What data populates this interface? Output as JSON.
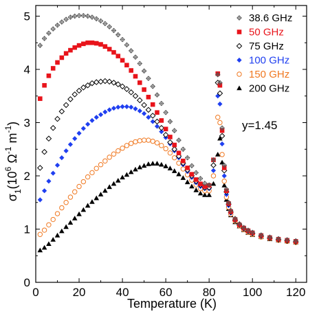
{
  "chart_data": {
    "type": "scatter",
    "xlabel": "Temperature (K)",
    "ylabel": {
      "base": "σ",
      "sub": "1",
      "paren_open": "(10",
      "exp": "6",
      "unit_mid": " Ω",
      "exp2": "-1",
      "unit_end": " m",
      "exp3": "-1",
      "paren_close": ")"
    },
    "xlim": [
      0,
      125
    ],
    "ylim": [
      0,
      5.2
    ],
    "xticks": [
      0,
      20,
      40,
      60,
      80,
      100,
      120
    ],
    "yticks": [
      0,
      1,
      2,
      3,
      4,
      5
    ],
    "annotation": "y=1.45",
    "legend_position": "top-right",
    "series": [
      {
        "name": "38.6 GHz",
        "color": "#555555",
        "marker": "diamond-plus",
        "x": [
          2,
          4,
          6,
          8,
          10,
          12,
          14,
          16,
          18,
          20,
          22,
          24,
          26,
          28,
          30,
          32,
          34,
          36,
          38,
          40,
          42,
          44,
          46,
          48,
          50,
          52,
          54,
          56,
          58,
          60,
          62,
          64,
          66,
          68,
          70,
          72,
          74,
          76,
          78,
          80,
          82,
          84,
          85,
          86,
          87,
          88,
          89,
          90,
          92,
          94,
          96,
          98,
          100,
          104,
          108,
          112,
          116,
          120
        ],
        "y": [
          4.45,
          4.58,
          4.68,
          4.76,
          4.83,
          4.89,
          4.94,
          4.98,
          5.0,
          5.01,
          5.01,
          5.0,
          4.98,
          4.95,
          4.91,
          4.86,
          4.8,
          4.73,
          4.65,
          4.56,
          4.46,
          4.35,
          4.23,
          4.11,
          3.97,
          3.83,
          3.68,
          3.52,
          3.36,
          3.19,
          3.02,
          2.85,
          2.67,
          2.5,
          2.34,
          2.19,
          2.06,
          1.95,
          1.86,
          1.83,
          2.3,
          3.9,
          3.75,
          2.9,
          2.2,
          1.75,
          1.5,
          1.35,
          1.2,
          1.1,
          1.03,
          0.98,
          0.94,
          0.89,
          0.85,
          0.82,
          0.8,
          0.78
        ]
      },
      {
        "name": "50 GHz",
        "color": "#e8141b",
        "marker": "square",
        "x": [
          2,
          4,
          6,
          8,
          10,
          12,
          14,
          16,
          18,
          20,
          22,
          24,
          26,
          28,
          30,
          32,
          34,
          36,
          38,
          40,
          42,
          44,
          46,
          48,
          50,
          52,
          54,
          56,
          58,
          60,
          62,
          64,
          66,
          68,
          70,
          72,
          74,
          76,
          78,
          80,
          82,
          84,
          85,
          86,
          87,
          88,
          89,
          90,
          92,
          94,
          96,
          98,
          100,
          104,
          108,
          112,
          116,
          120
        ],
        "y": [
          3.45,
          3.7,
          3.88,
          4.02,
          4.13,
          4.22,
          4.3,
          4.36,
          4.41,
          4.45,
          4.48,
          4.5,
          4.5,
          4.49,
          4.47,
          4.43,
          4.38,
          4.32,
          4.25,
          4.17,
          4.08,
          3.98,
          3.87,
          3.75,
          3.62,
          3.48,
          3.34,
          3.19,
          3.04,
          2.88,
          2.73,
          2.58,
          2.43,
          2.28,
          2.15,
          2.03,
          1.93,
          1.85,
          1.8,
          1.82,
          2.3,
          3.92,
          3.7,
          2.85,
          2.15,
          1.72,
          1.48,
          1.33,
          1.18,
          1.08,
          1.02,
          0.97,
          0.93,
          0.88,
          0.84,
          0.81,
          0.79,
          0.77
        ]
      },
      {
        "name": "75 GHz",
        "color": "#000000",
        "marker": "diamond-open",
        "x": [
          2,
          4,
          6,
          8,
          10,
          12,
          14,
          16,
          18,
          20,
          22,
          24,
          26,
          28,
          30,
          32,
          34,
          36,
          38,
          40,
          42,
          44,
          46,
          48,
          50,
          52,
          54,
          56,
          58,
          60,
          62,
          64,
          66,
          68,
          70,
          72,
          74,
          76,
          78,
          80,
          82,
          84,
          85,
          86,
          87,
          88,
          89,
          90,
          92,
          94,
          96,
          98,
          100,
          104,
          108,
          112,
          116,
          120
        ],
        "y": [
          2.15,
          2.45,
          2.7,
          2.9,
          3.07,
          3.21,
          3.33,
          3.44,
          3.53,
          3.6,
          3.66,
          3.7,
          3.74,
          3.76,
          3.77,
          3.78,
          3.77,
          3.75,
          3.72,
          3.68,
          3.63,
          3.57,
          3.5,
          3.42,
          3.33,
          3.24,
          3.13,
          3.02,
          2.9,
          2.77,
          2.63,
          2.5,
          2.37,
          2.24,
          2.11,
          2.0,
          1.9,
          1.83,
          1.78,
          1.78,
          2.2,
          3.75,
          3.55,
          2.75,
          2.1,
          1.7,
          1.47,
          1.32,
          1.17,
          1.08,
          1.01,
          0.96,
          0.92,
          0.87,
          0.83,
          0.8,
          0.78,
          0.76
        ]
      },
      {
        "name": "100 GHz",
        "color": "#1f3ff0",
        "marker": "diamond-filled",
        "x": [
          2,
          4,
          6,
          8,
          10,
          12,
          14,
          16,
          18,
          20,
          22,
          24,
          26,
          28,
          30,
          32,
          34,
          36,
          38,
          40,
          42,
          44,
          46,
          48,
          50,
          52,
          54,
          56,
          58,
          60,
          62,
          64,
          66,
          68,
          70,
          72,
          74,
          76,
          78,
          80,
          82,
          84,
          85,
          86,
          87,
          88,
          89,
          90,
          92,
          94,
          96,
          98,
          100,
          104,
          108,
          112,
          116,
          120
        ],
        "y": [
          1.55,
          1.72,
          1.9,
          2.05,
          2.2,
          2.34,
          2.47,
          2.59,
          2.7,
          2.8,
          2.89,
          2.97,
          3.04,
          3.1,
          3.15,
          3.2,
          3.24,
          3.27,
          3.29,
          3.3,
          3.3,
          3.29,
          3.26,
          3.22,
          3.17,
          3.1,
          3.02,
          2.93,
          2.83,
          2.72,
          2.6,
          2.47,
          2.34,
          2.21,
          2.08,
          1.97,
          1.87,
          1.8,
          1.76,
          1.76,
          2.1,
          3.5,
          3.35,
          2.6,
          2.0,
          1.65,
          1.44,
          1.3,
          1.16,
          1.07,
          1.0,
          0.95,
          0.91,
          0.86,
          0.82,
          0.8,
          0.78,
          0.76
        ]
      },
      {
        "name": "150 GHz",
        "color": "#f07820",
        "marker": "circle-open",
        "x": [
          2,
          4,
          6,
          8,
          10,
          12,
          14,
          16,
          18,
          20,
          22,
          24,
          26,
          28,
          30,
          32,
          34,
          36,
          38,
          40,
          42,
          44,
          46,
          48,
          50,
          52,
          54,
          56,
          58,
          60,
          62,
          64,
          66,
          68,
          70,
          72,
          74,
          76,
          78,
          80,
          82,
          84,
          85,
          86,
          87,
          88,
          89,
          90,
          92,
          94,
          96,
          98,
          100,
          104,
          108,
          112,
          116,
          120
        ],
        "y": [
          0.9,
          0.98,
          1.08,
          1.18,
          1.29,
          1.4,
          1.5,
          1.6,
          1.7,
          1.8,
          1.89,
          1.98,
          2.06,
          2.14,
          2.21,
          2.28,
          2.35,
          2.41,
          2.47,
          2.52,
          2.57,
          2.61,
          2.64,
          2.66,
          2.67,
          2.67,
          2.65,
          2.62,
          2.57,
          2.51,
          2.43,
          2.34,
          2.24,
          2.13,
          2.02,
          1.92,
          1.83,
          1.76,
          1.72,
          1.72,
          2.0,
          3.1,
          3.0,
          2.4,
          1.9,
          1.6,
          1.41,
          1.28,
          1.15,
          1.06,
          0.99,
          0.94,
          0.9,
          0.85,
          0.82,
          0.79,
          0.77,
          0.75
        ]
      },
      {
        "name": "200 GHz",
        "color": "#000000",
        "marker": "triangle",
        "x": [
          2,
          4,
          6,
          8,
          10,
          12,
          14,
          16,
          18,
          20,
          22,
          24,
          26,
          28,
          30,
          32,
          34,
          36,
          38,
          40,
          42,
          44,
          46,
          48,
          50,
          52,
          54,
          56,
          58,
          60,
          62,
          64,
          66,
          68,
          70,
          72,
          74,
          76,
          78,
          80,
          82,
          84,
          85,
          86,
          87,
          88,
          89,
          90,
          92,
          94,
          96,
          98,
          100,
          104,
          108,
          112,
          116,
          120
        ],
        "y": [
          0.6,
          0.65,
          0.72,
          0.8,
          0.88,
          0.96,
          1.04,
          1.12,
          1.2,
          1.28,
          1.36,
          1.44,
          1.51,
          1.58,
          1.65,
          1.72,
          1.79,
          1.85,
          1.91,
          1.97,
          2.02,
          2.07,
          2.12,
          2.16,
          2.19,
          2.22,
          2.23,
          2.23,
          2.21,
          2.18,
          2.14,
          2.09,
          2.03,
          1.96,
          1.88,
          1.8,
          1.73,
          1.67,
          1.64,
          1.64,
          1.85,
          2.4,
          2.7,
          2.25,
          1.82,
          1.55,
          1.38,
          1.26,
          1.13,
          1.05,
          0.98,
          0.93,
          0.89,
          0.85,
          0.81,
          0.79,
          0.77,
          0.75
        ]
      }
    ]
  }
}
